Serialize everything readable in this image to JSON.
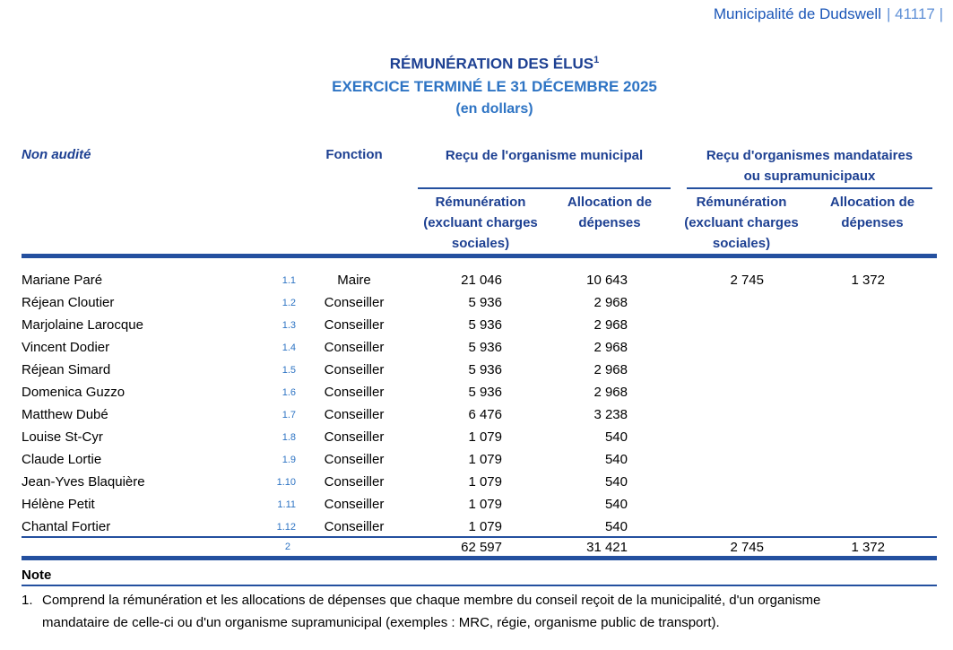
{
  "header": {
    "municipality": "Municipalité de Dudswell",
    "code": "| 41117 |"
  },
  "title": {
    "line1": "RÉMUNÉRATION DES ÉLUS",
    "line1_sup": "1",
    "line2": "EXERCICE TERMINÉ LE 31 DÉCEMBRE 2025",
    "line3": "(en dollars)"
  },
  "table": {
    "non_audited_label": "Non audité",
    "fonction_label": "Fonction",
    "group1_label": "Reçu de l'organisme municipal",
    "group2_label_line1": "Reçu d'organismes mandataires",
    "group2_label_line2": "ou supramunicipaux",
    "sub_remuneration_line1": "Rémunération",
    "sub_remuneration_line2": "(excluant charges",
    "sub_remuneration_line3": "sociales)",
    "sub_allocation_line1": "Allocation de",
    "sub_allocation_line2": "dépenses",
    "rows": [
      {
        "name": "Mariane Paré",
        "ref": "1.1",
        "fonction": "Maire",
        "mun_rem": "21 046",
        "mun_alloc": "10 643",
        "man_rem": "2 745",
        "man_alloc": "1 372"
      },
      {
        "name": "Réjean Cloutier",
        "ref": "1.2",
        "fonction": "Conseiller",
        "mun_rem": "5 936",
        "mun_alloc": "2 968",
        "man_rem": "",
        "man_alloc": ""
      },
      {
        "name": "Marjolaine Larocque",
        "ref": "1.3",
        "fonction": "Conseiller",
        "mun_rem": "5 936",
        "mun_alloc": "2 968",
        "man_rem": "",
        "man_alloc": ""
      },
      {
        "name": "Vincent Dodier",
        "ref": "1.4",
        "fonction": "Conseiller",
        "mun_rem": "5 936",
        "mun_alloc": "2 968",
        "man_rem": "",
        "man_alloc": ""
      },
      {
        "name": "Réjean Simard",
        "ref": "1.5",
        "fonction": "Conseiller",
        "mun_rem": "5 936",
        "mun_alloc": "2 968",
        "man_rem": "",
        "man_alloc": ""
      },
      {
        "name": "Domenica Guzzo",
        "ref": "1.6",
        "fonction": "Conseiller",
        "mun_rem": "5 936",
        "mun_alloc": "2 968",
        "man_rem": "",
        "man_alloc": ""
      },
      {
        "name": "Matthew Dubé",
        "ref": "1.7",
        "fonction": "Conseiller",
        "mun_rem": "6 476",
        "mun_alloc": "3 238",
        "man_rem": "",
        "man_alloc": ""
      },
      {
        "name": "Louise St-Cyr",
        "ref": "1.8",
        "fonction": "Conseiller",
        "mun_rem": "1 079",
        "mun_alloc": "540",
        "man_rem": "",
        "man_alloc": ""
      },
      {
        "name": "Claude Lortie",
        "ref": "1.9",
        "fonction": "Conseiller",
        "mun_rem": "1 079",
        "mun_alloc": "540",
        "man_rem": "",
        "man_alloc": ""
      },
      {
        "name": "Jean-Yves Blaquière",
        "ref": "1.10",
        "fonction": "Conseiller",
        "mun_rem": "1 079",
        "mun_alloc": "540",
        "man_rem": "",
        "man_alloc": ""
      },
      {
        "name": "Hélène Petit",
        "ref": "1.11",
        "fonction": "Conseiller",
        "mun_rem": "1 079",
        "mun_alloc": "540",
        "man_rem": "",
        "man_alloc": ""
      },
      {
        "name": "Chantal Fortier",
        "ref": "1.12",
        "fonction": "Conseiller",
        "mun_rem": "1 079",
        "mun_alloc": "540",
        "man_rem": "",
        "man_alloc": ""
      }
    ],
    "total": {
      "ref": "2",
      "mun_rem": "62 597",
      "mun_alloc": "31 421",
      "man_rem": "2 745",
      "man_alloc": "1 372"
    }
  },
  "note": {
    "heading": "Note",
    "item_number": "1.",
    "text": "Comprend la rémunération et les allocations de dépenses que chaque membre du conseil reçoit de la municipalité, d'un organisme mandataire de celle-ci ou d'un organisme supramunicipal (exemples : MRC, régie, organisme public de transport)."
  },
  "colors": {
    "navy": "#1d4092",
    "blue": "#2e74c4",
    "mun_blue": "#1c57b8",
    "code_blue": "#5e8fd6",
    "rule": "#24509f"
  }
}
